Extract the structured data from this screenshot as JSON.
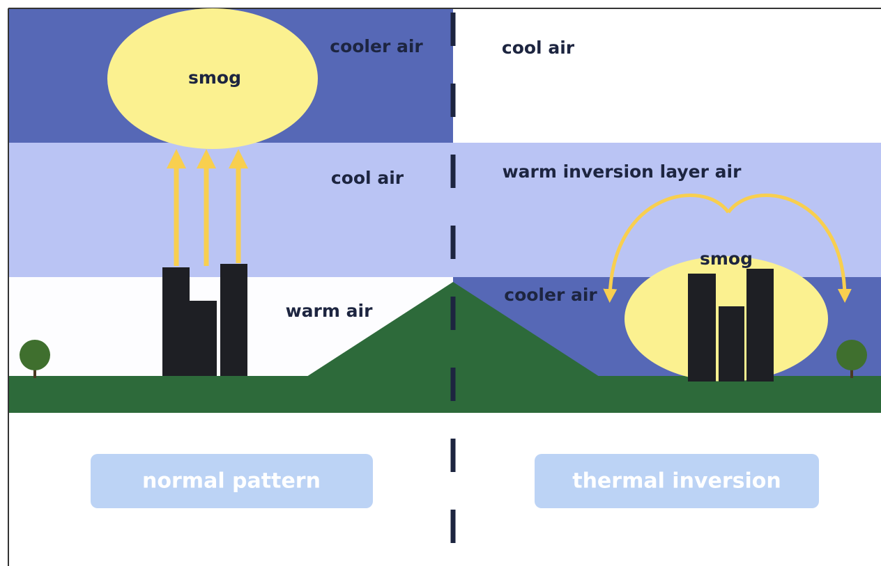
{
  "panels": [
    {
      "upper_layer": "cooler air",
      "smog": "smog",
      "middle_layer": "cool air",
      "lower_layer": "warm air",
      "caption": "normal pattern"
    },
    {
      "upper_layer": "cool air",
      "middle_layer": "warm inversion layer air",
      "smog": "smog",
      "lower_layer": "cooler air",
      "caption": "thermal inversion"
    }
  ]
}
